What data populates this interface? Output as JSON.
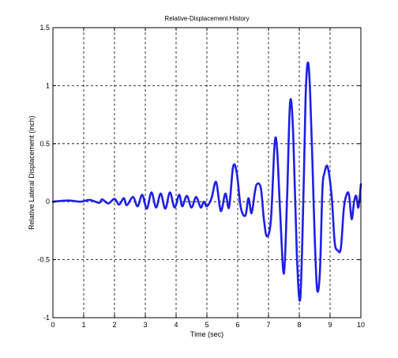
{
  "chart_data": {
    "type": "line",
    "title": "Relative-Displacement History",
    "xlabel": "Time (sec)",
    "ylabel": "Relative Lateral Displacement (inch)",
    "xlim": [
      0,
      10
    ],
    "ylim": [
      -1,
      1.5
    ],
    "xticks": [
      "0",
      "1",
      "2",
      "3",
      "4",
      "5",
      "6",
      "7",
      "8",
      "9",
      "10"
    ],
    "yticks": [
      "-1",
      "-0.5",
      "0",
      "0.5",
      "1",
      "1.5"
    ],
    "grid": true,
    "line_color": "#1f1fe6",
    "series": [
      {
        "name": "",
        "x": [
          0,
          0.5,
          0.9,
          1.2,
          1.5,
          1.6,
          1.8,
          2.0,
          2.15,
          2.3,
          2.4,
          2.6,
          2.75,
          2.9,
          3.05,
          3.2,
          3.35,
          3.5,
          3.65,
          3.8,
          3.95,
          4.1,
          4.2,
          4.35,
          4.5,
          4.65,
          4.8,
          4.9,
          5.0,
          5.15,
          5.3,
          5.45,
          5.6,
          5.72,
          5.85,
          5.97,
          6.1,
          6.25,
          6.35,
          6.45,
          6.55,
          6.62,
          6.75,
          6.85,
          6.95,
          7.08,
          7.2,
          7.28,
          7.38,
          7.5,
          7.6,
          7.7,
          7.8,
          7.92,
          8.03,
          8.13,
          8.2,
          8.25,
          8.3,
          8.35,
          8.42,
          8.5,
          8.58,
          8.67,
          8.75,
          8.82,
          8.92,
          9.05,
          9.15,
          9.25,
          9.35,
          9.45,
          9.55,
          9.62,
          9.7,
          9.78,
          9.85,
          9.92,
          10.0
        ],
        "y": [
          0.0,
          0.01,
          0.0,
          0.015,
          -0.01,
          0.02,
          -0.015,
          0.025,
          -0.025,
          0.03,
          -0.03,
          0.04,
          -0.04,
          0.06,
          -0.06,
          0.08,
          -0.05,
          0.07,
          -0.06,
          0.08,
          -0.05,
          0.06,
          -0.04,
          0.05,
          -0.05,
          0.04,
          -0.05,
          0.0,
          -0.04,
          0.03,
          0.17,
          -0.08,
          0.07,
          -0.05,
          0.3,
          0.25,
          -0.05,
          -0.12,
          0.03,
          -0.1,
          0.07,
          0.15,
          0.12,
          -0.15,
          -0.3,
          -0.15,
          0.5,
          0.45,
          -0.1,
          -0.62,
          0.0,
          0.85,
          0.6,
          -0.45,
          -0.84,
          0.0,
          0.85,
          1.15,
          1.18,
          0.95,
          0.4,
          -0.3,
          -0.76,
          -0.6,
          0.1,
          0.25,
          0.3,
          0.05,
          -0.35,
          -0.42,
          -0.4,
          -0.05,
          0.07,
          0.05,
          -0.15,
          0.0,
          0.05,
          -0.05,
          0.15
        ]
      }
    ]
  }
}
